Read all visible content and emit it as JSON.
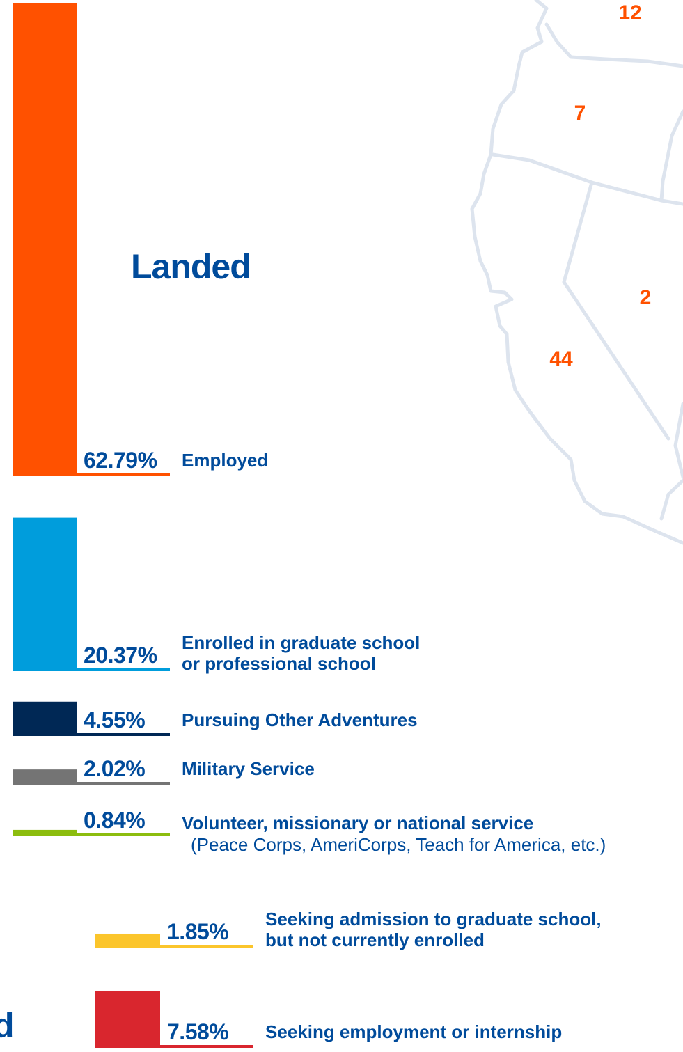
{
  "chart_data": {
    "type": "bar",
    "title": "Landed",
    "units": "%",
    "groups": [
      {
        "name": "Landed",
        "bars": [
          {
            "value": 62.79,
            "value_label": "62.79%",
            "label": "Employed",
            "sublabel": "",
            "color": "#ff5100"
          },
          {
            "value": 20.37,
            "value_label": "20.37%",
            "label": "Enrolled in graduate school",
            "label2": "or professional school",
            "sublabel": "",
            "color": "#009ddc"
          },
          {
            "value": 4.55,
            "value_label": "4.55%",
            "label": "Pursuing Other Adventures",
            "sublabel": "",
            "color": "#002855"
          },
          {
            "value": 2.02,
            "value_label": "2.02%",
            "label": "Military Service",
            "sublabel": "",
            "color": "#747474"
          },
          {
            "value": 0.84,
            "value_label": "0.84%",
            "label": "Volunteer, missionary or national service",
            "sublabel": "(Peace Corps, AmeriCorps, Teach for America, etc.)",
            "color": "#8cbd0e"
          }
        ]
      },
      {
        "name": "d",
        "bars": [
          {
            "value": 1.85,
            "value_label": "1.85%",
            "label": "Seeking admission to graduate school,",
            "label2": "but not currently enrolled",
            "sublabel": "",
            "color": "#fbc52b"
          },
          {
            "value": 7.58,
            "value_label": "7.58%",
            "label": "Seeking employment or internship",
            "sublabel": "",
            "color": "#d9262e"
          }
        ]
      }
    ]
  },
  "map": {
    "region_counts": [
      {
        "state": "Washington",
        "count": "12"
      },
      {
        "state": "Oregon",
        "count": "7"
      },
      {
        "state": "Nevada",
        "count": "2"
      },
      {
        "state": "California",
        "count": "44"
      }
    ]
  },
  "colors": {
    "text_blue": "#004b9b",
    "map_number": "#ff5100",
    "map_line": "#dde4ee"
  },
  "cut_heading": "d"
}
